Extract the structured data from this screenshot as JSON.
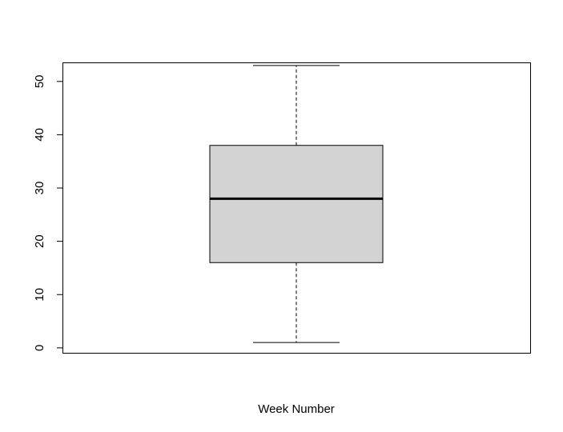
{
  "chart_data": {
    "type": "boxplot",
    "title": "",
    "xlabel": "Week Number",
    "ylabel": "",
    "ylim": [
      -1,
      53.5
    ],
    "yticks": [
      0,
      10,
      20,
      30,
      40,
      50
    ],
    "ytick_labels": [
      "0",
      "10",
      "20",
      "30",
      "40",
      "50"
    ],
    "grid": false,
    "box": {
      "min": 1,
      "q1": 16,
      "median": 28,
      "q3": 38,
      "max": 53
    },
    "colors": {
      "box_fill": "#d3d3d3",
      "stroke": "#000000"
    }
  }
}
